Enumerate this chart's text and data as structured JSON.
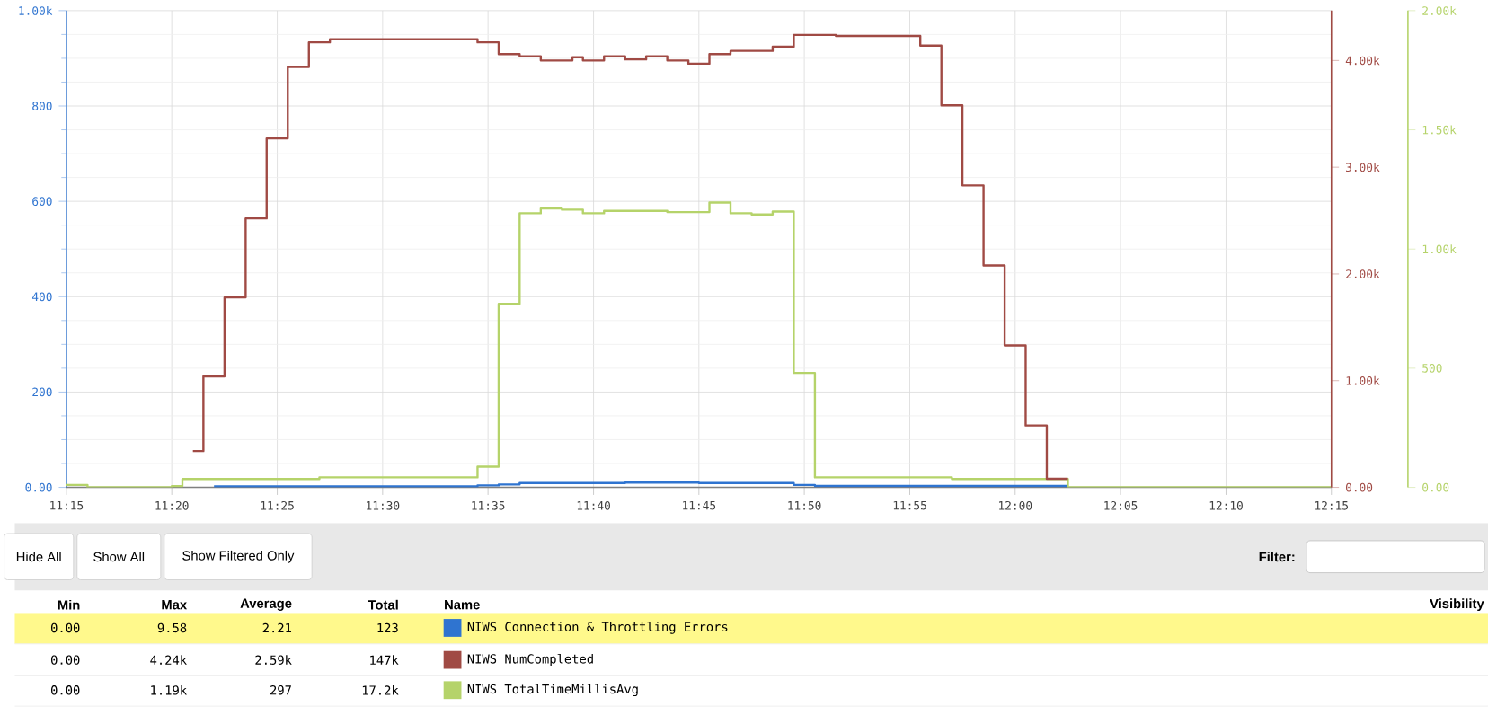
{
  "chart_data": {
    "type": "step",
    "xlim": [
      11.25,
      12.25
    ],
    "xticks": [
      {
        "value": 11.25,
        "label": "11:15"
      },
      {
        "value": 11.3333,
        "label": "11:20"
      },
      {
        "value": 11.4167,
        "label": "11:25"
      },
      {
        "value": 11.5,
        "label": "11:30"
      },
      {
        "value": 11.5833,
        "label": "11:35"
      },
      {
        "value": 11.6667,
        "label": "11:40"
      },
      {
        "value": 11.75,
        "label": "11:45"
      },
      {
        "value": 11.8333,
        "label": "11:50"
      },
      {
        "value": 11.9167,
        "label": "11:55"
      },
      {
        "value": 12,
        "label": "12:00"
      },
      {
        "value": 12.0833,
        "label": "12:05"
      },
      {
        "value": 12.1667,
        "label": "12:10"
      },
      {
        "value": 12.25,
        "label": "12:15"
      }
    ],
    "ylim": [
      0,
      1000
    ],
    "yticks": [
      {
        "value": 0,
        "label": "0.00"
      },
      200,
      400,
      600,
      800,
      {
        "value": 1000,
        "label": "1.00k"
      }
    ],
    "y2lim": [
      0,
      4467
    ],
    "y2ticks": [
      {
        "value": 0,
        "label": "0.00"
      },
      {
        "value": 1000,
        "label": "1.00k"
      },
      {
        "value": 2000,
        "label": "2.00k"
      },
      {
        "value": 3000,
        "label": "3.00k"
      },
      {
        "value": 4000,
        "label": "4.00k"
      }
    ],
    "y3lim": [
      0,
      2000
    ],
    "y3ticks": [
      {
        "value": 0,
        "label": "0.00"
      },
      500,
      {
        "value": 1000,
        "label": "1.00k"
      },
      {
        "value": 1500,
        "label": "1.50k"
      },
      {
        "value": 2000,
        "label": "2.00k"
      }
    ],
    "grid": true,
    "legend": "bottom",
    "marker": "none",
    "line_style": "solid",
    "series": [
      {
        "name": "NIWS Connection & Throttling Errors",
        "color": "#2f74d0",
        "axis": "y",
        "x": [
          11.3667,
          11.575,
          11.5917,
          11.6083,
          11.6917,
          11.75,
          11.825,
          11.8417,
          12.0417
        ],
        "values": [
          2,
          4,
          6,
          9,
          10,
          9,
          5,
          3,
          3
        ]
      },
      {
        "name": "NIWS NumCompleted",
        "color": "#a04a44",
        "axis": "y2",
        "x": [
          11.35,
          11.3583,
          11.375,
          11.3917,
          11.4083,
          11.425,
          11.4417,
          11.4583,
          11.575,
          11.5917,
          11.6083,
          11.625,
          11.65,
          11.6583,
          11.675,
          11.6917,
          11.7083,
          11.725,
          11.7417,
          11.7583,
          11.775,
          11.8083,
          11.825,
          11.8583,
          11.925,
          11.9417,
          11.9583,
          11.975,
          11.9917,
          12.0083,
          12.025,
          12.0417
        ],
        "values": [
          340,
          1040,
          1780,
          2520,
          3270,
          3940,
          4170,
          4200,
          4170,
          4060,
          4040,
          4000,
          4030,
          4000,
          4040,
          4010,
          4040,
          4000,
          3970,
          4060,
          4090,
          4130,
          4240,
          4230,
          4140,
          3580,
          2830,
          2080,
          1330,
          580,
          80,
          80
        ]
      },
      {
        "name": "NIWS TotalTimeMillisAvg",
        "color": "#b5d36a",
        "axis": "y3",
        "x": [
          11.25,
          11.2667,
          11.3333,
          11.3417,
          11.45,
          11.575,
          11.5917,
          11.6083,
          11.625,
          11.6417,
          11.6583,
          11.675,
          11.725,
          11.7583,
          11.775,
          11.7917,
          11.8083,
          11.825,
          11.8417,
          11.95,
          12.0417,
          12.25
        ],
        "values": [
          10,
          0,
          5,
          35,
          42,
          87,
          770,
          1150,
          1170,
          1165,
          1150,
          1160,
          1155,
          1195,
          1150,
          1145,
          1157,
          480,
          42,
          35,
          0,
          0
        ]
      }
    ],
    "annotations": [
      "Hide All",
      "Show All",
      "Show Filtered Only",
      "Filter:",
      "Min",
      "Max",
      "Average",
      "Total",
      "Name",
      "Visibility",
      "0.00",
      "9.58",
      "2.21",
      "123",
      "0.00",
      "4.24k",
      "2.59k",
      "147k",
      "0.00",
      "1.19k",
      "297",
      "17.2k"
    ]
  }
}
